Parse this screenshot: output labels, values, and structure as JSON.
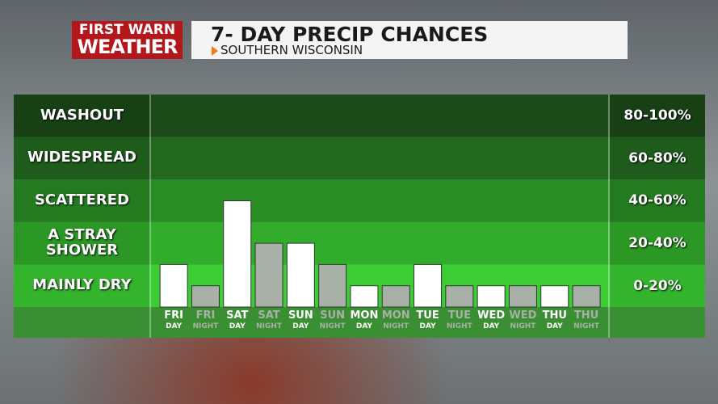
{
  "chart_data": {
    "type": "bar",
    "logo": {
      "line1": "FIRST WARN",
      "line2": "WEATHER"
    },
    "title": "7- DAY PRECIP CHANCES",
    "subtitle": "SOUTHERN WISCONSIN",
    "categories": [
      "FRI",
      "FRI",
      "SAT",
      "SAT",
      "SUN",
      "SUN",
      "MON",
      "MON",
      "TUE",
      "TUE",
      "WED",
      "WED",
      "THU",
      "THU"
    ],
    "periods": [
      "DAY",
      "NIGHT",
      "DAY",
      "NIGHT",
      "DAY",
      "NIGHT",
      "DAY",
      "NIGHT",
      "DAY",
      "NIGHT",
      "DAY",
      "NIGHT",
      "DAY",
      "NIGHT"
    ],
    "values": [
      20,
      10,
      50,
      30,
      30,
      20,
      10,
      10,
      20,
      10,
      10,
      10,
      10,
      10
    ],
    "colors": {
      "DAY": "#ffffff",
      "NIGHT": "#a9b0a8"
    },
    "ylim": [
      0,
      100
    ],
    "bands": [
      {
        "name": "MAINLY DRY",
        "range": "0-20%",
        "from": 0,
        "to": 20,
        "color": "#3ccc34"
      },
      {
        "name": "A STRAY SHOWER",
        "range": "20-40%",
        "from": 20,
        "to": 40,
        "color": "#32ad2b"
      },
      {
        "name": "SCATTERED",
        "range": "40-60%",
        "from": 40,
        "to": 60,
        "color": "#298c24"
      },
      {
        "name": "WIDESPREAD",
        "range": "60-80%",
        "from": 60,
        "to": 80,
        "color": "#22691e"
      },
      {
        "name": "WASHOUT",
        "range": "80-100%",
        "from": 80,
        "to": 100,
        "color": "#1b4a18"
      }
    ]
  }
}
